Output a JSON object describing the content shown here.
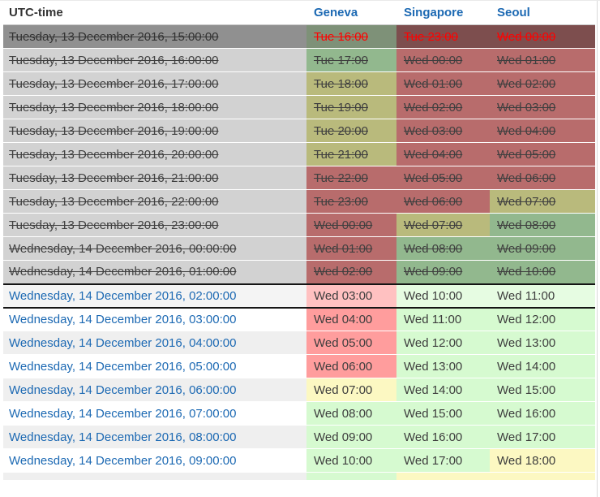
{
  "table": {
    "columns": [
      {
        "key": "utc",
        "label": "UTC-time"
      },
      {
        "key": "geneva",
        "label": "Geneva"
      },
      {
        "key": "singapore",
        "label": "Singapore"
      },
      {
        "key": "seoul",
        "label": "Seoul"
      }
    ],
    "palette": {
      "link_blue": "#1c69b3",
      "now_red": "#ff0000",
      "past_utc": "#d2d2d2",
      "current_utc": "#909090",
      "future_utc_alt": "#efefef",
      "selected_utc": "#f4f4f4",
      "current_green": "#7e9178",
      "current_red": "#7d4e4e",
      "past_green": "#92b88e",
      "past_olive": "#b9ba7c",
      "past_red": "#b86c6c",
      "future_red": "#ff9d9d",
      "future_green": "#d6fad0",
      "future_yellow": "#fcf8c2",
      "selected_red": "#ffc1c1",
      "selected_green": "#e6fce2"
    },
    "rows": [
      {
        "utc": "Tuesday, 13 December 2016, 15:00:00",
        "state": "current",
        "alt": false,
        "times": [
          "Tue 16:00",
          "Tue 23:00",
          "Wed 00:00"
        ],
        "colors": [
          "current_green",
          "current_red",
          "current_red"
        ]
      },
      {
        "utc": "Tuesday, 13 December 2016, 16:00:00",
        "state": "past",
        "alt": false,
        "times": [
          "Tue 17:00",
          "Wed 00:00",
          "Wed 01:00"
        ],
        "colors": [
          "past_green",
          "past_red",
          "past_red"
        ]
      },
      {
        "utc": "Tuesday, 13 December 2016, 17:00:00",
        "state": "past",
        "alt": false,
        "times": [
          "Tue 18:00",
          "Wed 01:00",
          "Wed 02:00"
        ],
        "colors": [
          "past_olive",
          "past_red",
          "past_red"
        ]
      },
      {
        "utc": "Tuesday, 13 December 2016, 18:00:00",
        "state": "past",
        "alt": false,
        "times": [
          "Tue 19:00",
          "Wed 02:00",
          "Wed 03:00"
        ],
        "colors": [
          "past_olive",
          "past_red",
          "past_red"
        ]
      },
      {
        "utc": "Tuesday, 13 December 2016, 19:00:00",
        "state": "past",
        "alt": false,
        "times": [
          "Tue 20:00",
          "Wed 03:00",
          "Wed 04:00"
        ],
        "colors": [
          "past_olive",
          "past_red",
          "past_red"
        ]
      },
      {
        "utc": "Tuesday, 13 December 2016, 20:00:00",
        "state": "past",
        "alt": false,
        "times": [
          "Tue 21:00",
          "Wed 04:00",
          "Wed 05:00"
        ],
        "colors": [
          "past_olive",
          "past_red",
          "past_red"
        ]
      },
      {
        "utc": "Tuesday, 13 December 2016, 21:00:00",
        "state": "past",
        "alt": false,
        "times": [
          "Tue 22:00",
          "Wed 05:00",
          "Wed 06:00"
        ],
        "colors": [
          "past_red",
          "past_red",
          "past_red"
        ]
      },
      {
        "utc": "Tuesday, 13 December 2016, 22:00:00",
        "state": "past",
        "alt": false,
        "times": [
          "Tue 23:00",
          "Wed 06:00",
          "Wed 07:00"
        ],
        "colors": [
          "past_red",
          "past_red",
          "past_olive"
        ]
      },
      {
        "utc": "Tuesday, 13 December 2016, 23:00:00",
        "state": "past",
        "alt": false,
        "times": [
          "Wed 00:00",
          "Wed 07:00",
          "Wed 08:00"
        ],
        "colors": [
          "past_red",
          "past_olive",
          "past_green"
        ]
      },
      {
        "utc": "Wednesday, 14 December 2016, 00:00:00",
        "state": "past",
        "alt": false,
        "times": [
          "Wed 01:00",
          "Wed 08:00",
          "Wed 09:00"
        ],
        "colors": [
          "past_red",
          "past_green",
          "past_green"
        ]
      },
      {
        "utc": "Wednesday, 14 December 2016, 01:00:00",
        "state": "past",
        "alt": false,
        "times": [
          "Wed 02:00",
          "Wed 09:00",
          "Wed 10:00"
        ],
        "colors": [
          "past_red",
          "past_green",
          "past_green"
        ]
      },
      {
        "utc": "Wednesday, 14 December 2016, 02:00:00",
        "state": "selected",
        "alt": false,
        "times": [
          "Wed 03:00",
          "Wed 10:00",
          "Wed 11:00"
        ],
        "colors": [
          "selected_red",
          "selected_green",
          "selected_green"
        ]
      },
      {
        "utc": "Wednesday, 14 December 2016, 03:00:00",
        "state": "future",
        "alt": false,
        "times": [
          "Wed 04:00",
          "Wed 11:00",
          "Wed 12:00"
        ],
        "colors": [
          "future_red",
          "future_green",
          "future_green"
        ]
      },
      {
        "utc": "Wednesday, 14 December 2016, 04:00:00",
        "state": "future",
        "alt": true,
        "times": [
          "Wed 05:00",
          "Wed 12:00",
          "Wed 13:00"
        ],
        "colors": [
          "future_red",
          "future_green",
          "future_green"
        ]
      },
      {
        "utc": "Wednesday, 14 December 2016, 05:00:00",
        "state": "future",
        "alt": false,
        "times": [
          "Wed 06:00",
          "Wed 13:00",
          "Wed 14:00"
        ],
        "colors": [
          "future_red",
          "future_green",
          "future_green"
        ]
      },
      {
        "utc": "Wednesday, 14 December 2016, 06:00:00",
        "state": "future",
        "alt": true,
        "times": [
          "Wed 07:00",
          "Wed 14:00",
          "Wed 15:00"
        ],
        "colors": [
          "future_yellow",
          "future_green",
          "future_green"
        ]
      },
      {
        "utc": "Wednesday, 14 December 2016, 07:00:00",
        "state": "future",
        "alt": false,
        "times": [
          "Wed 08:00",
          "Wed 15:00",
          "Wed 16:00"
        ],
        "colors": [
          "future_green",
          "future_green",
          "future_green"
        ]
      },
      {
        "utc": "Wednesday, 14 December 2016, 08:00:00",
        "state": "future",
        "alt": true,
        "times": [
          "Wed 09:00",
          "Wed 16:00",
          "Wed 17:00"
        ],
        "colors": [
          "future_green",
          "future_green",
          "future_green"
        ]
      },
      {
        "utc": "Wednesday, 14 December 2016, 09:00:00",
        "state": "future",
        "alt": false,
        "times": [
          "Wed 10:00",
          "Wed 17:00",
          "Wed 18:00"
        ],
        "colors": [
          "future_green",
          "future_green",
          "future_yellow"
        ]
      },
      {
        "utc": "",
        "state": "sliver",
        "alt": true,
        "times": [
          "",
          "",
          ""
        ],
        "colors": [
          "future_green",
          "future_yellow",
          "future_yellow"
        ]
      }
    ]
  }
}
